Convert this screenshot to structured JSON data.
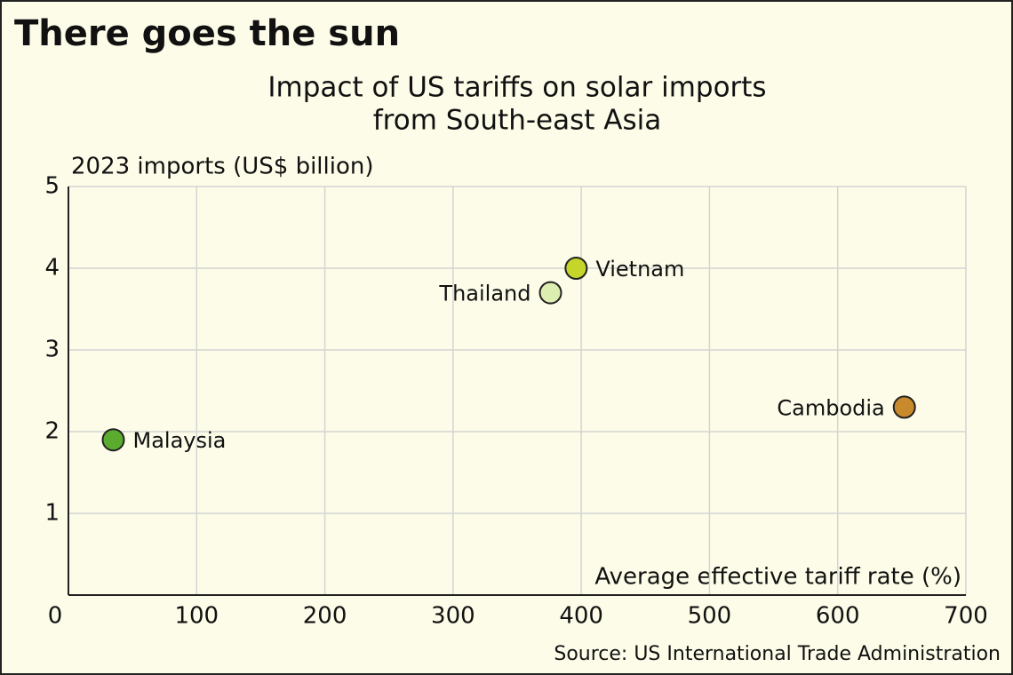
{
  "chart_data": {
    "type": "scatter",
    "title": "There goes the sun",
    "subtitle": [
      "Impact of US tariffs on solar imports",
      "from South-east Asia"
    ],
    "y_label": "2023 imports (US$ billion)",
    "x_label": "Average effective tariff rate (%)",
    "source": "Source: US International Trade Administration",
    "categories": [
      "Malaysia",
      "Thailand",
      "Vietnam",
      "Cambodia"
    ],
    "x": [
      35,
      376,
      396,
      652
    ],
    "values": [
      1.9,
      3.7,
      4.0,
      2.3
    ],
    "colors": [
      "#5aab2e",
      "#dcefb0",
      "#c5d62a",
      "#c98a2e"
    ],
    "xlim": [
      0,
      700
    ],
    "xticks": [
      0,
      100,
      200,
      300,
      400,
      500,
      600,
      700
    ],
    "ylim": [
      0,
      5
    ],
    "yticks": [
      1,
      2,
      3,
      4,
      5
    ],
    "grid": true
  }
}
